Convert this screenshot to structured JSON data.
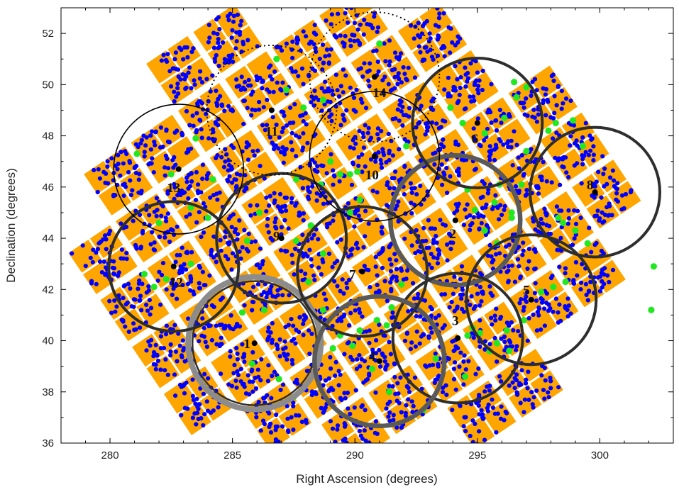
{
  "chart_data": {
    "type": "scatter",
    "title": "",
    "xlabel": "Right Ascension (degrees)",
    "ylabel": "Declination (degrees)",
    "xlim": [
      278,
      303
    ],
    "ylim": [
      36,
      53
    ],
    "xticks": [
      "280",
      "285",
      "290",
      "295",
      "300"
    ],
    "yticks": [
      "36",
      "38",
      "40",
      "42",
      "44",
      "46",
      "48",
      "50",
      "52"
    ],
    "grid": false,
    "legend": "none",
    "colors": {
      "ccd_pixels": "#FFA500",
      "stars": "#0000FF",
      "green_targets": "#22E822",
      "circle_thin": "#000000",
      "circle_dark": "#2E2E2E",
      "circle_gray": "#5A5A5A",
      "circle_lightgray": "#8C8C8C",
      "centers": "#000000"
    },
    "fields": [
      {
        "id": "1",
        "ra": 285.9,
        "dec": 39.9,
        "radius": 2.65,
        "style": "gray-double",
        "label_ra": 285.6,
        "label_dec": 39.9
      },
      {
        "id": "2",
        "ra": 294.1,
        "dec": 44.7,
        "radius": 2.65,
        "style": "gray",
        "label_ra": 294.0,
        "label_dec": 44.2
      },
      {
        "id": "3",
        "ra": 294.2,
        "dec": 40.1,
        "radius": 2.65,
        "style": "dark",
        "label_ra": 294.1,
        "label_dec": 40.8
      },
      {
        "id": "4",
        "ra": 291.0,
        "dec": 39.2,
        "radius": 2.65,
        "style": "gray",
        "label_ra": 290.7,
        "label_dec": 39.4
      },
      {
        "id": "5",
        "ra": 297.2,
        "dec": 41.6,
        "radius": 2.65,
        "style": "dark",
        "label_ra": 297.0,
        "label_dec": 42.0
      },
      {
        "id": "6",
        "ra": 295.0,
        "dec": 48.5,
        "radius": 2.65,
        "style": "dark",
        "label_ra": 294.9,
        "label_dec": 47.9
      },
      {
        "id": "7",
        "ra": 290.3,
        "dec": 42.7,
        "radius": 2.65,
        "style": "dark",
        "label_ra": 289.9,
        "label_dec": 42.6
      },
      {
        "id": "8",
        "ra": 299.8,
        "dec": 45.8,
        "radius": 2.65,
        "style": "dark",
        "label_ra": 299.6,
        "label_dec": 46.1
      },
      {
        "id": "9",
        "ra": 287.0,
        "dec": 44.0,
        "radius": 2.65,
        "style": "dark",
        "label_ra": 286.8,
        "label_dec": 44.1
      },
      {
        "id": "10",
        "ra": 290.8,
        "dec": 47.2,
        "radius": 2.65,
        "style": "thin",
        "label_ra": 290.7,
        "label_dec": 46.5
      },
      {
        "id": "11",
        "ra": 286.6,
        "dec": 49.0,
        "radius": 2.65,
        "style": "dotted",
        "label_ra": 286.6,
        "label_dec": 48.2
      },
      {
        "id": "12",
        "ra": 282.6,
        "dec": 42.9,
        "radius": 2.65,
        "style": "dark",
        "label_ra": 282.7,
        "label_dec": 42.3
      },
      {
        "id": "13",
        "ra": 282.8,
        "dec": 46.7,
        "radius": 2.65,
        "style": "thin",
        "label_ra": 282.6,
        "label_dec": 46.0
      },
      {
        "id": "14",
        "ra": 290.8,
        "dec": 50.3,
        "radius": 2.65,
        "style": "dotted",
        "label_ra": 291.0,
        "label_dec": 49.7
      }
    ],
    "green_targets": [
      [
        302.2,
        42.9
      ],
      [
        302.1,
        41.2
      ],
      [
        291.0,
        51.6
      ],
      [
        286.8,
        51.0
      ],
      [
        288.7,
        49.4
      ],
      [
        287.2,
        49.8
      ],
      [
        287.9,
        49.1
      ],
      [
        292.1,
        47.6
      ],
      [
        289.0,
        47.0
      ],
      [
        289.4,
        46.5
      ],
      [
        289.8,
        46.5
      ],
      [
        290.1,
        46.6
      ],
      [
        288.6,
        46.1
      ],
      [
        287.6,
        46.3
      ],
      [
        290.2,
        45.5
      ],
      [
        286.1,
        45.0
      ],
      [
        283.3,
        45.2
      ],
      [
        284.2,
        46.3
      ],
      [
        282.5,
        46.5
      ],
      [
        283.5,
        47.9
      ],
      [
        281.1,
        47.3
      ],
      [
        282.0,
        44.6
      ],
      [
        284.0,
        44.8
      ],
      [
        285.6,
        43.9
      ],
      [
        287.6,
        43.9
      ],
      [
        288.2,
        44.5
      ],
      [
        289.8,
        45.0
      ],
      [
        288.7,
        43.4
      ],
      [
        288.1,
        42.3
      ],
      [
        281.4,
        42.6
      ],
      [
        281.8,
        42.1
      ],
      [
        282.3,
        42.4
      ],
      [
        283.3,
        43.0
      ],
      [
        286.3,
        41.2
      ],
      [
        285.4,
        41.1
      ],
      [
        288.7,
        41.2
      ],
      [
        289.4,
        40.2
      ],
      [
        289.1,
        39.7
      ],
      [
        290.2,
        40.4
      ],
      [
        290.9,
        40.8
      ],
      [
        291.3,
        40.6
      ],
      [
        291.5,
        41.3
      ],
      [
        291.9,
        42.2
      ],
      [
        289.9,
        39.8
      ],
      [
        290.7,
        38.9
      ],
      [
        291.4,
        38.0
      ],
      [
        292.8,
        37.3
      ],
      [
        287.5,
        37.8
      ],
      [
        285.8,
        39.1
      ],
      [
        286.9,
        38.5
      ],
      [
        294.6,
        40.2
      ],
      [
        294.8,
        40.5
      ],
      [
        295.1,
        40.3
      ],
      [
        295.8,
        39.9
      ],
      [
        296.3,
        39.6
      ],
      [
        293.3,
        39.3
      ],
      [
        294.5,
        38.6
      ],
      [
        295.5,
        39.6
      ],
      [
        296.2,
        40.4
      ],
      [
        296.9,
        40.8
      ],
      [
        297.6,
        41.9
      ],
      [
        298.1,
        42.1
      ],
      [
        298.6,
        42.3
      ],
      [
        296.4,
        44.8
      ],
      [
        296.4,
        45.0
      ],
      [
        295.3,
        44.3
      ],
      [
        295.8,
        43.8
      ],
      [
        294.9,
        45.1
      ],
      [
        294.6,
        45.9
      ],
      [
        296.8,
        46.1
      ],
      [
        298.5,
        44.6
      ],
      [
        299.0,
        44.3
      ],
      [
        298.3,
        44.8
      ],
      [
        299.5,
        43.8
      ],
      [
        295.9,
        46.1
      ],
      [
        295.7,
        45.4
      ],
      [
        297.0,
        47.4
      ],
      [
        298.2,
        48.5
      ],
      [
        298.9,
        48.6
      ],
      [
        299.3,
        47.6
      ],
      [
        297.9,
        48.2
      ],
      [
        295.3,
        48.1
      ],
      [
        296.1,
        48.7
      ],
      [
        296.6,
        49.5
      ],
      [
        297.0,
        49.9
      ],
      [
        296.5,
        50.1
      ],
      [
        293.9,
        49.1
      ],
      [
        294.4,
        48.5
      ]
    ]
  }
}
